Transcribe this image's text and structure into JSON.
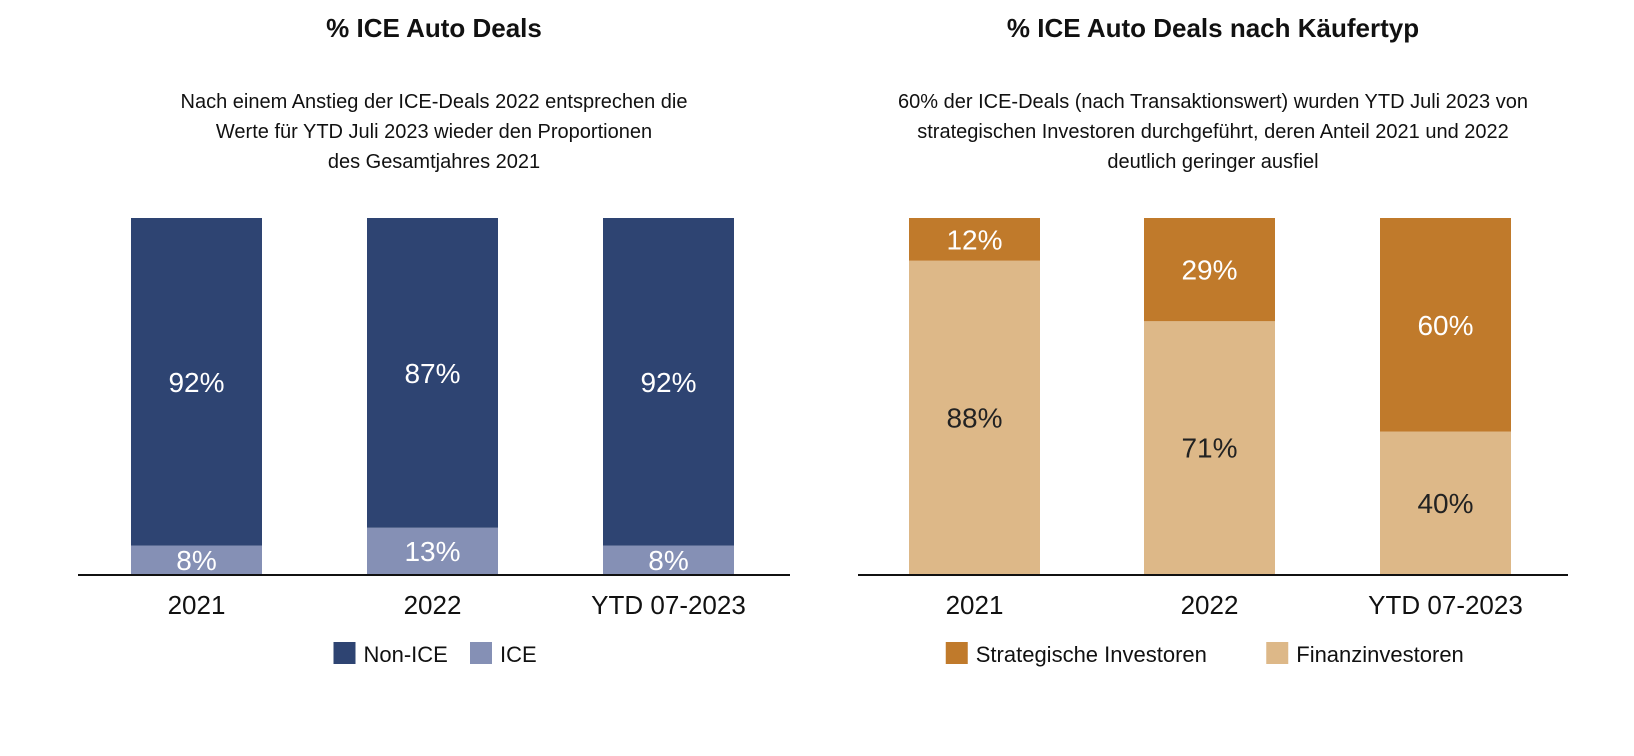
{
  "chart_data": [
    {
      "type": "bar",
      "stacked": true,
      "title": "% ICE Auto Deals",
      "subtitle": [
        "Nach einem Anstieg der ICE-Deals 2022 entsprechen die",
        "Werte für YTD Juli 2023 wieder den Proportionen",
        "des Gesamtjahres 2021"
      ],
      "categories": [
        "2021",
        "2022",
        "YTD 07-2023"
      ],
      "series": [
        {
          "name": "ICE",
          "values": [
            8,
            13,
            8
          ],
          "color": "#8590B5",
          "label_color": "#ffffff"
        },
        {
          "name": "Non-ICE",
          "values": [
            92,
            87,
            92
          ],
          "color": "#2E4472",
          "label_color": "#ffffff"
        }
      ],
      "legend_order": [
        "Non-ICE",
        "ICE"
      ],
      "legend": "bottom",
      "unit": "%",
      "ylim": [
        0,
        100
      ],
      "grid": false
    },
    {
      "type": "bar",
      "stacked": true,
      "title": "% ICE Auto Deals nach Käufertyp",
      "subtitle": [
        "60% der ICE-Deals (nach Transaktionswert) wurden YTD Juli 2023 von",
        "strategischen Investoren durchgeführt, deren Anteil 2021 und 2022",
        "deutlich geringer ausfiel"
      ],
      "categories": [
        "2021",
        "2022",
        "YTD 07-2023"
      ],
      "series": [
        {
          "name": "Finanzinvestoren",
          "values": [
            88,
            71,
            40
          ],
          "color": "#DDB888",
          "label_color": "#222222"
        },
        {
          "name": "Strategische Investoren",
          "values": [
            12,
            29,
            60
          ],
          "color": "#C07A2B",
          "label_color": "#ffffff"
        }
      ],
      "legend_order": [
        "Strategische Investoren",
        "Finanzinvestoren"
      ],
      "legend": "bottom",
      "unit": "%",
      "ylim": [
        0,
        100
      ],
      "grid": false
    }
  ]
}
